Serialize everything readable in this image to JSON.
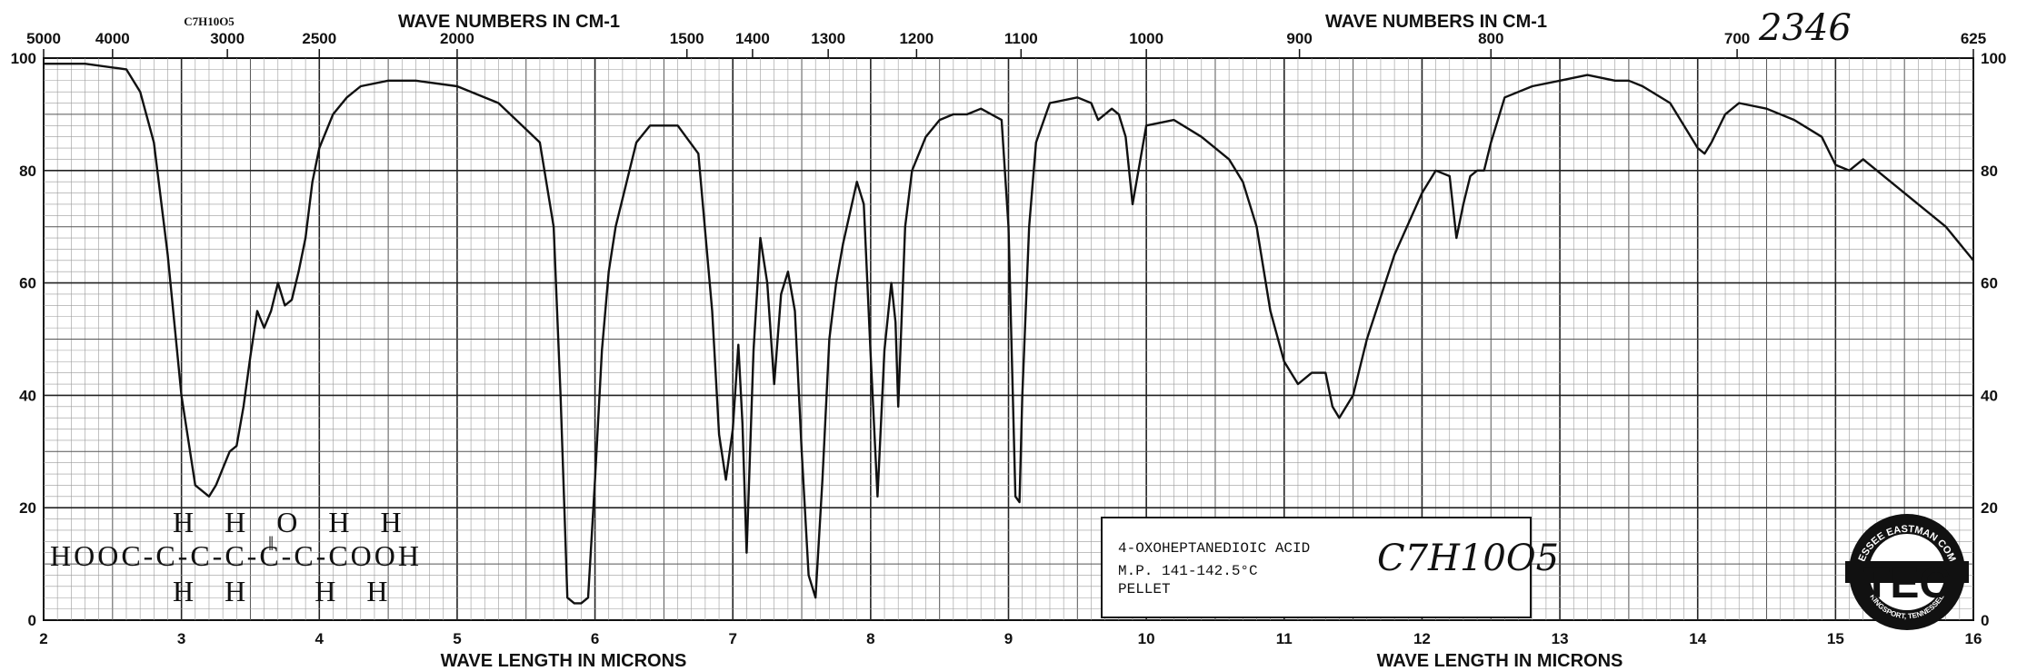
{
  "chart_data": {
    "type": "line",
    "top_axis_title_left": "WAVE NUMBERS IN CM-1",
    "top_axis_title_right": "WAVE NUMBERS IN CM-1",
    "bottom_axis_title_left": "WAVE LENGTH IN MICRONS",
    "bottom_axis_title_right": "WAVE LENGTH IN MICRONS",
    "formula_label": "C7H10O5",
    "catalog_number": "2346",
    "xlim": [
      2,
      16
    ],
    "ylim": [
      0,
      100
    ],
    "grid": true,
    "x_ticks": [
      "2",
      "3",
      "4",
      "5",
      "6",
      "7",
      "8",
      "9",
      "10",
      "11",
      "12",
      "13",
      "14",
      "15",
      "16"
    ],
    "y_ticks": [
      "0",
      "20",
      "40",
      "60",
      "80",
      "100"
    ],
    "right_y_ticks": [
      "0",
      "20",
      "40",
      "60",
      "80",
      "100"
    ],
    "top_ticks": [
      {
        "label": "5000",
        "um": 2.0
      },
      {
        "label": "4000",
        "um": 2.5
      },
      {
        "label": "3000",
        "um": 3.333
      },
      {
        "label": "2500",
        "um": 4.0
      },
      {
        "label": "2000",
        "um": 5.0
      },
      {
        "label": "1500",
        "um": 6.667
      },
      {
        "label": "1400",
        "um": 7.143
      },
      {
        "label": "1300",
        "um": 7.692
      },
      {
        "label": "1200",
        "um": 8.333
      },
      {
        "label": "1100",
        "um": 9.091
      },
      {
        "label": "1000",
        "um": 10.0
      },
      {
        "label": "900",
        "um": 11.111
      },
      {
        "label": "800",
        "um": 12.5
      },
      {
        "label": "700",
        "um": 14.286
      },
      {
        "label": "625",
        "um": 16.0
      }
    ],
    "series": [
      {
        "color": "#111111",
        "x": [
          2.0,
          2.3,
          2.6,
          2.7,
          2.8,
          2.9,
          3.0,
          3.1,
          3.2,
          3.25,
          3.3,
          3.35,
          3.4,
          3.45,
          3.5,
          3.55,
          3.6,
          3.65,
          3.7,
          3.75,
          3.8,
          3.85,
          3.9,
          3.95,
          4.0,
          4.1,
          4.2,
          4.3,
          4.5,
          4.7,
          5.0,
          5.3,
          5.6,
          5.7,
          5.75,
          5.8,
          5.85,
          5.9,
          5.95,
          6.0,
          6.05,
          6.1,
          6.15,
          6.2,
          6.3,
          6.4,
          6.5,
          6.6,
          6.75,
          6.85,
          6.9,
          6.95,
          7.0,
          7.04,
          7.07,
          7.1,
          7.15,
          7.2,
          7.25,
          7.3,
          7.35,
          7.4,
          7.45,
          7.5,
          7.55,
          7.6,
          7.65,
          7.7,
          7.75,
          7.8,
          7.9,
          7.95,
          8.0,
          8.05,
          8.1,
          8.15,
          8.18,
          8.2,
          8.25,
          8.3,
          8.4,
          8.5,
          8.6,
          8.7,
          8.8,
          8.95,
          9.0,
          9.05,
          9.08,
          9.1,
          9.15,
          9.2,
          9.3,
          9.5,
          9.6,
          9.65,
          9.75,
          9.8,
          9.85,
          9.9,
          10.0,
          10.2,
          10.4,
          10.6,
          10.7,
          10.8,
          10.9,
          11.0,
          11.1,
          11.2,
          11.3,
          11.35,
          11.4,
          11.5,
          11.6,
          11.8,
          12.0,
          12.1,
          12.2,
          12.25,
          12.3,
          12.35,
          12.4,
          12.45,
          12.5,
          12.6,
          12.8,
          13.0,
          13.2,
          13.4,
          13.5,
          13.6,
          13.8,
          14.0,
          14.05,
          14.1,
          14.2,
          14.3,
          14.5,
          14.7,
          14.9,
          15.0,
          15.1,
          15.2,
          15.4,
          15.6,
          15.8,
          16.0
        ],
        "y": [
          99,
          99,
          98,
          94,
          85,
          65,
          40,
          24,
          22,
          24,
          27,
          30,
          31,
          38,
          47,
          55,
          52,
          55,
          60,
          56,
          57,
          62,
          68,
          78,
          84,
          90,
          93,
          95,
          96,
          96,
          95,
          92,
          85,
          70,
          40,
          4,
          3,
          3,
          4,
          25,
          48,
          62,
          70,
          75,
          85,
          88,
          88,
          88,
          83,
          55,
          33,
          25,
          34,
          49,
          35,
          12,
          48,
          68,
          60,
          42,
          58,
          62,
          55,
          30,
          8,
          4,
          25,
          50,
          60,
          67,
          78,
          74,
          47,
          22,
          48,
          60,
          53,
          38,
          70,
          80,
          86,
          89,
          90,
          90,
          91,
          89,
          70,
          22,
          21,
          40,
          70,
          85,
          92,
          93,
          92,
          89,
          91,
          90,
          86,
          74,
          88,
          89,
          86,
          82,
          78,
          70,
          55,
          46,
          42,
          44,
          44,
          38,
          36,
          40,
          50,
          65,
          76,
          80,
          79,
          68,
          74,
          79,
          80,
          80,
          85,
          93,
          95,
          96,
          97,
          96,
          96,
          95,
          92,
          84,
          83,
          85,
          90,
          92,
          91,
          89,
          86,
          81,
          80,
          82,
          78,
          74,
          70,
          64
        ]
      }
    ]
  },
  "structure": {
    "row_top": "H  H  O  H  H",
    "row_mid": "HOOC-C-C-C-C-C-COOH",
    "row_bottom": "H  H     H  H",
    "double_bond_mark": "‖"
  },
  "label_box": {
    "name": "4-OXOHEPTANEDIOIC ACID",
    "formula": "C7H10O5",
    "mp": "M.P. 141-142.5°C",
    "method": "PELLET"
  },
  "logo": {
    "ring_text": "TENNESSEE EASTMAN COMPANY",
    "center_text": "TEC",
    "bottom_text": "KINGSPORT, TENNESSEE"
  }
}
